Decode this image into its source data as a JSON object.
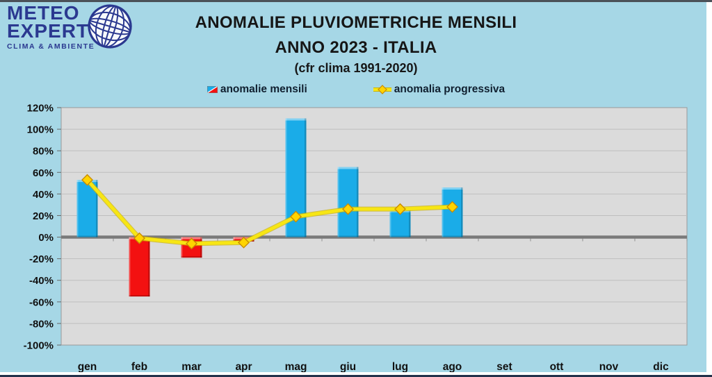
{
  "header": {
    "logo": {
      "line1": "METEO",
      "line2": "EXPERT",
      "tagline": "CLIMA & AMBIENTE"
    },
    "title": "ANOMALIE PLUVIOMETRICHE MENSILI",
    "subtitle": "ANNO 2023 - ITALIA",
    "note": "(cfr clima 1991-2020)"
  },
  "legend": [
    {
      "label": "anomalie mensili",
      "type": "bar"
    },
    {
      "label": "anomalia progressiva",
      "type": "line"
    }
  ],
  "colors": {
    "background": "#A6D7E6",
    "plot_background": "#DBDBDB",
    "gridline": "#BEBEBE",
    "plot_border": "#9A9A9A",
    "zero_axis": "#7A7A7A",
    "bar_positive": "#1AACE8",
    "bar_negative": "#F31111",
    "line": "#F7E614",
    "line_edge": "#CDB400",
    "marker_fill": "#FFD400",
    "marker_border": "#C98C00",
    "axis_text": "#111111",
    "title_text": "#161616",
    "logo_navy": "#2B3990"
  },
  "chart_data": {
    "type": "bar",
    "title": "ANOMALIE PLUVIOMETRICHE MENSILI - ANNO 2023 - ITALIA (cfr clima 1991-2020)",
    "categories": [
      "gen",
      "feb",
      "mar",
      "apr",
      "mag",
      "giu",
      "lug",
      "ago",
      "set",
      "ott",
      "nov",
      "dic"
    ],
    "series": [
      {
        "name": "anomalie mensili",
        "type": "bar",
        "values": [
          53,
          -55,
          -19,
          -4,
          110,
          65,
          25,
          46,
          null,
          null,
          null,
          null
        ]
      },
      {
        "name": "anomalia progressiva",
        "type": "line",
        "values": [
          53,
          -1,
          -6,
          -5,
          19,
          26,
          26,
          28,
          null,
          null,
          null,
          null
        ]
      }
    ],
    "xlabel": "",
    "ylabel": "",
    "ylim": [
      -100,
      120
    ],
    "yticks": [
      120,
      100,
      80,
      60,
      40,
      20,
      0,
      -20,
      -40,
      -60,
      -80,
      -100
    ],
    "ytick_format": "percent",
    "grid": "horizontal",
    "legend_position": "top"
  }
}
